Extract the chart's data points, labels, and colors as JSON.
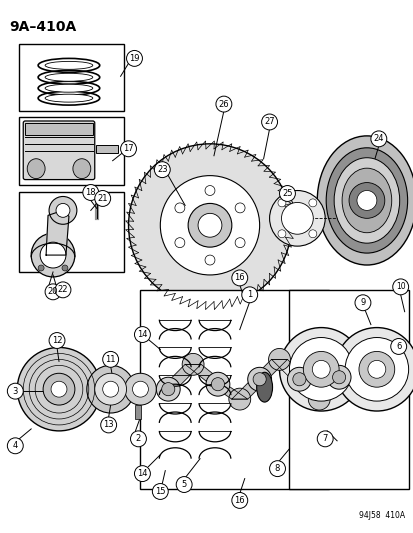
{
  "title": "9A–410A",
  "footer": "94J58  410A",
  "bg_color": "#ffffff",
  "fg_color": "#000000",
  "title_fontsize": 10,
  "footer_fontsize": 5.5,
  "label_fontsize": 6.0
}
